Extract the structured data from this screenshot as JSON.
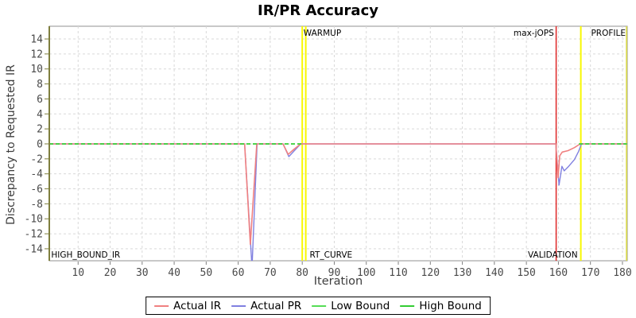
{
  "title": "IR/PR Accuracy",
  "x_axis_label": "Iteration",
  "y_axis_label": "Discrepancy to Requested IR",
  "legend": {
    "items": [
      {
        "name": "actual-ir",
        "label": "Actual IR",
        "color": "#f08080"
      },
      {
        "name": "actual-pr",
        "label": "Actual PR",
        "color": "#8080e0"
      },
      {
        "name": "low-bound",
        "label": "Low Bound",
        "color": "#55dd55"
      },
      {
        "name": "high-bound",
        "label": "High Bound",
        "color": "#33cc33"
      }
    ]
  },
  "colors": {
    "grid": "#d9d9d9",
    "plot_border": "#919191",
    "y_axis_line": "#7f7f3f",
    "right_edge": "#d8d855",
    "tick_label": "#4a4a4a",
    "phase_label": "#000000",
    "warmup_marker": "#f8f800",
    "max_jops_marker": "#e03030"
  },
  "chart_data": {
    "type": "line",
    "title": "IR/PR Accuracy",
    "xlabel": "Iteration",
    "ylabel": "Discrepancy to Requested IR",
    "x_range": [
      1,
      181.5
    ],
    "y_range": [
      -15.6,
      15.7
    ],
    "x_ticks": [
      10,
      20,
      30,
      40,
      50,
      60,
      70,
      80,
      90,
      100,
      110,
      120,
      130,
      140,
      150,
      160,
      170,
      180
    ],
    "y_ticks": [
      -14,
      -12,
      -10,
      -8,
      -6,
      -4,
      -2,
      0,
      2,
      4,
      6,
      8,
      10,
      12,
      14
    ],
    "grid": true,
    "legend_position": "bottom",
    "series": [
      {
        "name": "Actual PR",
        "color": "#8080e0",
        "width": 1.4,
        "dash": null,
        "segments": [
          [
            [
              1,
              0
            ],
            [
              62,
              0
            ],
            [
              64.3,
              -16.5
            ],
            [
              65.9,
              0
            ],
            [
              74,
              0
            ],
            [
              75.8,
              -1.7
            ],
            [
              79.5,
              0
            ],
            [
              159.2,
              0
            ],
            [
              160.2,
              -5.5
            ],
            [
              161.1,
              -3.0
            ],
            [
              161.8,
              -3.6
            ],
            [
              163.2,
              -3.0
            ],
            [
              165,
              -2.1
            ],
            [
              166.3,
              -1.0
            ],
            [
              167.2,
              0
            ],
            [
              181.4,
              0
            ]
          ]
        ]
      },
      {
        "name": "Actual IR",
        "color": "#f08080",
        "width": 1.6,
        "dash": null,
        "segments": [
          [
            [
              1,
              0
            ],
            [
              62,
              0
            ],
            [
              63.8,
              -13.4
            ],
            [
              65.8,
              0
            ],
            [
              74,
              0
            ],
            [
              75.6,
              -1.4
            ],
            [
              77.2,
              -0.8
            ],
            [
              79.5,
              0
            ],
            [
              159.2,
              0
            ],
            [
              159.9,
              -4.5
            ],
            [
              160.4,
              -1.6
            ],
            [
              161.2,
              -1.1
            ],
            [
              163,
              -0.9
            ],
            [
              165,
              -0.5
            ],
            [
              166.8,
              0
            ],
            [
              181.4,
              0
            ]
          ]
        ]
      },
      {
        "name": "Low Bound",
        "color": "#55dd55",
        "width": 1.8,
        "dash": "5 3",
        "segments": [
          [
            [
              1,
              0
            ],
            [
              80,
              0
            ]
          ],
          [
            [
              166.4,
              0
            ],
            [
              181.4,
              0
            ]
          ]
        ]
      },
      {
        "name": "High Bound",
        "color": "#33cc33",
        "width": 1.2,
        "dash": "5 3",
        "segments": [
          [
            [
              1,
              0
            ],
            [
              80,
              0
            ]
          ],
          [
            [
              166.4,
              0
            ],
            [
              181.4,
              0
            ]
          ]
        ]
      }
    ],
    "vertical_markers": [
      {
        "name": "warmup-start",
        "x": 80,
        "color": "#f8f800",
        "width": 2
      },
      {
        "name": "rtcurve-start",
        "x": 81.1,
        "color": "#f8f800",
        "width": 2
      },
      {
        "name": "max-jops",
        "x": 159.3,
        "color": "#e03030",
        "width": 1.6
      },
      {
        "name": "profile-start",
        "x": 167,
        "color": "#f8f800",
        "width": 2
      },
      {
        "name": "right-edge",
        "x": 181.3,
        "color": "#d8d855",
        "width": 2
      }
    ],
    "annotations": [
      {
        "text": "WARMUP",
        "x": 80.4,
        "anchor": "start",
        "position": "top"
      },
      {
        "text": "max-jOPS",
        "x": 158.6,
        "anchor": "end",
        "position": "top"
      },
      {
        "text": "PROFILE",
        "x": 181,
        "anchor": "end",
        "position": "top"
      },
      {
        "text": "HIGH_BOUND_IR",
        "x": 1.6,
        "anchor": "start",
        "position": "bottom"
      },
      {
        "text": "RT_CURVE",
        "x": 82.3,
        "anchor": "start",
        "position": "bottom"
      },
      {
        "text": "VALIDATION",
        "x": 166,
        "anchor": "end",
        "position": "bottom"
      }
    ]
  }
}
